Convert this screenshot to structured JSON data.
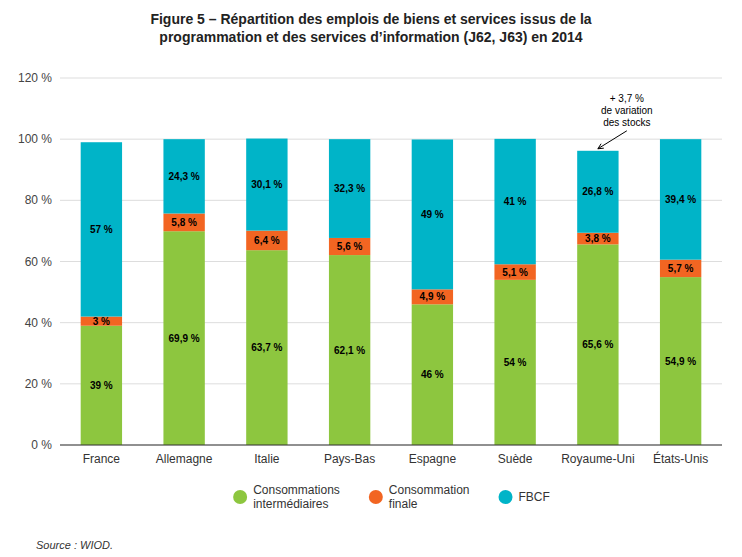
{
  "chart_data": {
    "type": "bar",
    "stacked": true,
    "title": "Figure 5 – Répartition des emplois de biens et services issus de la\nprogrammation et des services d’information (J62, J63) en 2014",
    "categories": [
      "France",
      "Allemagne",
      "Italie",
      "Pays-Bas",
      "Espagne",
      "Suède",
      "Royaume-Uni",
      "États-Unis"
    ],
    "series": [
      {
        "name": "Consommations\nintermédiaires",
        "color": "#8dc63f",
        "values": [
          39,
          69.9,
          63.7,
          62.1,
          46,
          54,
          65.6,
          54.9
        ],
        "value_labels": [
          "39 %",
          "69,9 %",
          "63,7 %",
          "62,1 %",
          "46 %",
          "54 %",
          "65,6 %",
          "54,9 %"
        ]
      },
      {
        "name": "Consommation\nfinale",
        "color": "#f26522",
        "values": [
          3,
          5.8,
          6.4,
          5.6,
          4.9,
          5.1,
          3.8,
          5.7
        ],
        "value_labels": [
          "3 %",
          "5,8 %",
          "6,4 %",
          "5,6 %",
          "4,9 %",
          "5,1 %",
          "3,8 %",
          "5,7 %"
        ]
      },
      {
        "name": "FBCF",
        "color": "#00b4c8",
        "values": [
          57,
          24.3,
          30.1,
          32.3,
          49,
          41,
          26.8,
          39.4
        ],
        "value_labels": [
          "57 %",
          "24,3 %",
          "30,1 %",
          "32,3 %",
          "49 %",
          "41 %",
          "26,8 %",
          "39,4 %"
        ]
      }
    ],
    "ylim": [
      0,
      120
    ],
    "yticks": [
      {
        "value": 0,
        "label": "0 %"
      },
      {
        "value": 20,
        "label": "20 %"
      },
      {
        "value": 40,
        "label": "40 %"
      },
      {
        "value": 60,
        "label": "60 %"
      },
      {
        "value": 80,
        "label": "80 %"
      },
      {
        "value": 100,
        "label": "100 %"
      },
      {
        "value": 120,
        "label": "120 %"
      }
    ],
    "grid": true,
    "legend": "bottom",
    "data_labels": true,
    "annotations": [
      {
        "text": "+ 3,7 %\nde variation\ndes stocks",
        "category": "Royaume-Uni"
      }
    ],
    "source": "Source : WIOD."
  }
}
